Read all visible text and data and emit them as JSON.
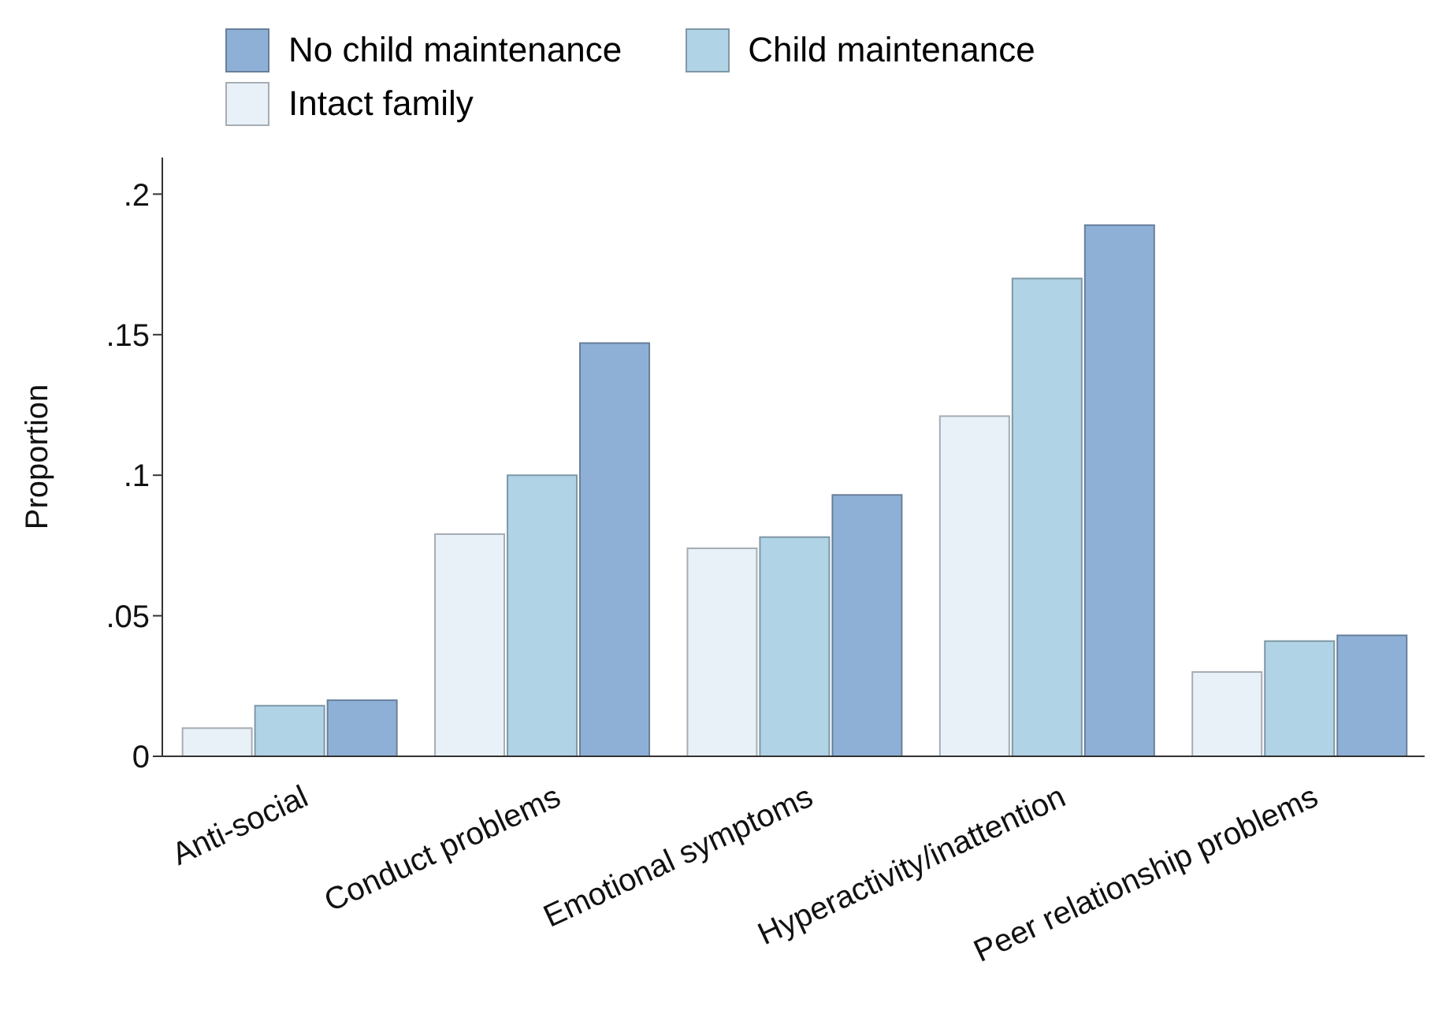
{
  "chart_data": {
    "type": "bar",
    "ylabel": "Proportion",
    "categories": [
      "Anti-social",
      "Conduct problems",
      "Emotional symptoms",
      "Hyperactivity/inattention",
      "Peer relationship problems"
    ],
    "series": [
      {
        "name": "Intact family",
        "color": "#e8f0f8",
        "values": [
          0.01,
          0.079,
          0.074,
          0.121,
          0.03
        ]
      },
      {
        "name": "Child maintenance",
        "color": "#b0d3e6",
        "values": [
          0.018,
          0.1,
          0.078,
          0.17,
          0.041
        ]
      },
      {
        "name": "No child maintenance",
        "color": "#8fb0d6",
        "values": [
          0.02,
          0.147,
          0.093,
          0.189,
          0.043
        ]
      }
    ],
    "ylim": [
      0,
      0.213
    ],
    "yticks": [
      {
        "value": 0,
        "label": "0"
      },
      {
        "value": 0.05,
        "label": ".05"
      },
      {
        "value": 0.1,
        "label": ".1"
      },
      {
        "value": 0.15,
        "label": ".15"
      },
      {
        "value": 0.2,
        "label": ".2"
      }
    ],
    "grid": false,
    "legend": "top left"
  }
}
